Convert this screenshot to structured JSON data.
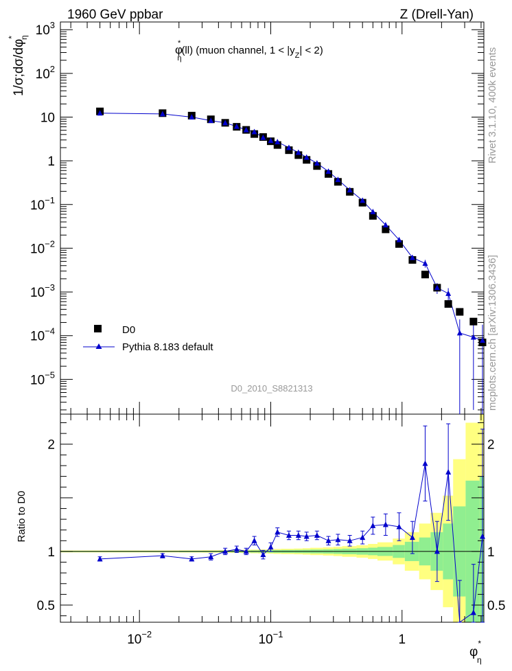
{
  "header": {
    "left": "1960 GeV ppbar",
    "right": "Z (Drell-Yan)"
  },
  "side_labels": {
    "top": "Rivet 3.1.10,  400k events",
    "bottom": "mcplots.cern.ch [arXiv:1306.3436]"
  },
  "watermark": "D0_2010_S8821313",
  "colors": {
    "data": "#000000",
    "mc": "#0000cc",
    "band_inner": "#90ee90",
    "band_outer": "#ffff80",
    "ref_line": "#000000"
  },
  "chart_data": [
    {
      "type": "scatter",
      "title_parts": {
        "base": "φ",
        "sup": "*",
        "sub": "η",
        "rest": "(ll) (muon channel, 1 < |y",
        "sub2": "Z",
        "end": "| < 2)"
      },
      "ylabel_parts": {
        "a": "1/σ;dσ/dφ",
        "sup": "*",
        "sub": "η"
      },
      "xscale": "log",
      "yscale": "log",
      "xlim": [
        0.0025,
        4.2
      ],
      "ylim": [
        1.6e-06,
        1500.0
      ],
      "xticks": [
        {
          "value": 0.01,
          "label": "10",
          "exp": "−2"
        },
        {
          "value": 0.1,
          "label": "10",
          "exp": "−1"
        },
        {
          "value": 1,
          "label": "1",
          "exp": ""
        }
      ],
      "yticks": [
        {
          "value": 1000.0,
          "label": "10",
          "exp": "3"
        },
        {
          "value": 100.0,
          "label": "10",
          "exp": "2"
        },
        {
          "value": 10,
          "label": "10",
          "exp": ""
        },
        {
          "value": 1,
          "label": "1",
          "exp": ""
        },
        {
          "value": 0.1,
          "label": "10",
          "exp": "−1"
        },
        {
          "value": 0.01,
          "label": "10",
          "exp": "−2"
        },
        {
          "value": 0.001,
          "label": "10",
          "exp": "−3"
        },
        {
          "value": 0.0001,
          "label": "10",
          "exp": "−4"
        },
        {
          "value": 1e-05,
          "label": "10",
          "exp": "−5"
        }
      ],
      "legend": {
        "position": "bottom-left",
        "data_label": "D0",
        "mc_label": "Pythia 8.183 default"
      },
      "x": [
        0.005,
        0.015,
        0.025,
        0.035,
        0.045,
        0.055,
        0.065,
        0.075,
        0.0875,
        0.1,
        0.1125,
        0.1375,
        0.1625,
        0.1875,
        0.225,
        0.275,
        0.325,
        0.4,
        0.5,
        0.6,
        0.75,
        0.95,
        1.2,
        1.5,
        1.85,
        2.25,
        2.75,
        3.5,
        4.1
      ],
      "series": [
        {
          "name": "D0",
          "marker": "square",
          "values": [
            13.5,
            12.3,
            10.8,
            8.9,
            7.4,
            6.0,
            5.1,
            4.1,
            3.5,
            2.8,
            2.3,
            1.75,
            1.35,
            1.05,
            0.76,
            0.5,
            0.33,
            0.195,
            0.11,
            0.055,
            0.027,
            0.0125,
            0.0054,
            0.0025,
            0.00125,
            0.00053,
            0.00035,
            0.00021,
            7e-05
          ]
        },
        {
          "name": "Pythia 8.183 default",
          "marker": "triangle",
          "values": [
            12.3,
            11.8,
            10.0,
            8.3,
            7.4,
            6.1,
            5.1,
            4.6,
            3.4,
            2.9,
            2.7,
            2.0,
            1.55,
            1.2,
            0.88,
            0.57,
            0.37,
            0.214,
            0.124,
            0.068,
            0.034,
            0.0155,
            0.0061,
            0.0045,
            0.00125,
            0.00092,
            0.000115,
            9.2e-05,
            7.8e-05
          ],
          "err_low": [
            0.3,
            0.3,
            0.3,
            0.2,
            0.2,
            0.2,
            0.15,
            0.15,
            0.1,
            0.1,
            0.1,
            0.06,
            0.05,
            0.04,
            0.03,
            0.02,
            0.015,
            0.008,
            0.005,
            0.004,
            0.003,
            0.0015,
            0.0008,
            0.0009,
            0.00035,
            0.0003,
            0.000114,
            9e-05,
            7.7e-05
          ],
          "err_high": [
            0.3,
            0.3,
            0.3,
            0.2,
            0.2,
            0.2,
            0.15,
            0.15,
            0.1,
            0.1,
            0.1,
            0.06,
            0.05,
            0.04,
            0.03,
            0.02,
            0.015,
            0.008,
            0.005,
            0.004,
            0.003,
            0.0015,
            0.0008,
            0.0009,
            0.00035,
            0.0003,
            0.00012,
            0.0001,
            0.0001
          ]
        }
      ]
    },
    {
      "type": "line",
      "ylabel": "Ratio to D0",
      "xscale": "log",
      "xlim": [
        0.0025,
        4.2
      ],
      "ylim": [
        0.34,
        2.28
      ],
      "xlabel_parts": {
        "base": "φ",
        "sup": "*",
        "sub": "η"
      },
      "yticks": [
        {
          "value": 0.5,
          "label": "0.5"
        },
        {
          "value": 1,
          "label": "1"
        },
        {
          "value": 2,
          "label": "2"
        }
      ],
      "ratio": [
        0.93,
        0.96,
        0.93,
        0.95,
        1.0,
        1.02,
        1.0,
        1.1,
        0.97,
        1.04,
        1.18,
        1.15,
        1.15,
        1.14,
        1.15,
        1.1,
        1.11,
        1.1,
        1.13,
        1.24,
        1.25,
        1.23,
        1.13,
        1.82,
        1.0,
        1.74,
        0.33,
        0.43,
        1.14
      ],
      "ratio_err": [
        0.02,
        0.02,
        0.02,
        0.03,
        0.03,
        0.03,
        0.03,
        0.04,
        0.04,
        0.04,
        0.04,
        0.04,
        0.04,
        0.04,
        0.04,
        0.04,
        0.05,
        0.05,
        0.06,
        0.08,
        0.1,
        0.13,
        0.15,
        0.35,
        0.28,
        0.45,
        0.4,
        0.45,
        1.0
      ],
      "band_edges": [
        0.0025,
        0.01,
        0.02,
        0.03,
        0.04,
        0.05,
        0.06,
        0.07,
        0.08,
        0.095,
        0.105,
        0.12,
        0.15,
        0.175,
        0.2,
        0.25,
        0.3,
        0.35,
        0.45,
        0.55,
        0.65,
        0.85,
        1.05,
        1.35,
        1.65,
        2.05,
        2.45,
        3.05,
        3.9,
        4.2
      ],
      "band_inner": [
        0.005,
        0.005,
        0.006,
        0.006,
        0.007,
        0.008,
        0.009,
        0.01,
        0.011,
        0.012,
        0.013,
        0.014,
        0.015,
        0.016,
        0.018,
        0.02,
        0.023,
        0.026,
        0.03,
        0.035,
        0.042,
        0.06,
        0.09,
        0.13,
        0.18,
        0.26,
        0.42,
        0.66,
        0.7
      ],
      "band_outer": [
        0.009,
        0.009,
        0.01,
        0.011,
        0.012,
        0.013,
        0.015,
        0.017,
        0.019,
        0.021,
        0.023,
        0.025,
        0.027,
        0.03,
        0.034,
        0.038,
        0.043,
        0.05,
        0.058,
        0.07,
        0.085,
        0.12,
        0.18,
        0.26,
        0.36,
        0.52,
        0.86,
        1.2,
        1.3
      ]
    }
  ]
}
